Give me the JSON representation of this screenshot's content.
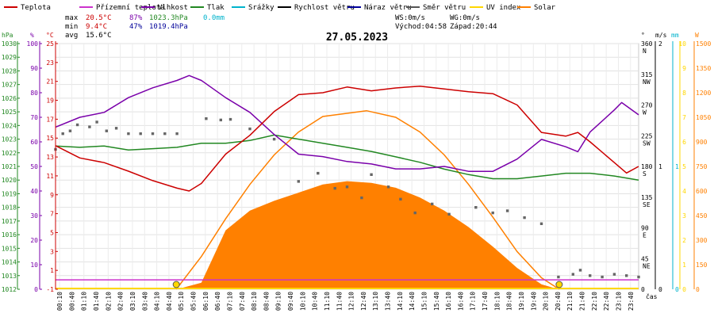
{
  "chart_data": {
    "type": "line",
    "title": "27.05.2023",
    "legend": [
      {
        "label": "Teplota",
        "color": "#cc0000"
      },
      {
        "label": "Přízemní teplota",
        "color": "#cc33cc"
      },
      {
        "label": "Vlhkost",
        "color": "#7a00aa"
      },
      {
        "label": "Tlak",
        "color": "#228822"
      },
      {
        "label": "Srážky",
        "color": "#00b3cc"
      },
      {
        "label": "Rychlost větru",
        "color": "#000000"
      },
      {
        "label": "Náraz větru",
        "color": "#000099"
      },
      {
        "label": "Směr větru",
        "color": "#555555"
      },
      {
        "label": "UV index",
        "color": "#ffd700"
      },
      {
        "label": "Solar",
        "color": "#ff8000"
      }
    ],
    "stats": {
      "max_label": "max",
      "max_temp": "20.5°C",
      "max_hum": "87%",
      "max_press": "1023.3hPa",
      "rain": "0.0mm",
      "min_label": "min",
      "min_temp": "9.4°C",
      "min_hum": "47%",
      "min_press": "1019.4hPa",
      "avg_label": "avg",
      "avg_temp": "15.6°C",
      "ws": "WS:0m/s",
      "wg": "WG:0m/s",
      "sunrise": "Východ:04:58",
      "sunset": "Západ:20:44"
    },
    "axes": {
      "hpa_unit": "hPa",
      "pct_unit": "%",
      "c_unit": "°C",
      "deg_unit": "°",
      "ms_unit": "m/s",
      "mm_unit": "mm",
      "w_unit": "W",
      "time_unit": "čas",
      "hpa_ticks": [
        "1030",
        "1029",
        "1028",
        "1027",
        "1026",
        "1025",
        "1024",
        "1023",
        "1022",
        "1021",
        "1020",
        "1019",
        "1018",
        "1017",
        "1016",
        "1015",
        "1014",
        "1013",
        "1012"
      ],
      "pct_ticks": [
        "100",
        "90",
        "80",
        "70",
        "60",
        "50",
        "40",
        "30",
        "20",
        "10",
        "0"
      ],
      "c_ticks": [
        "25",
        "23",
        "21",
        "19",
        "17",
        "15",
        "13",
        "11",
        "9",
        "7",
        "5",
        "3",
        "1",
        "-1"
      ],
      "dir_ticks": [
        {
          "deg": 360,
          "label": "360",
          "dir": "N"
        },
        {
          "deg": 315,
          "label": "315",
          "dir": "NW"
        },
        {
          "deg": 270,
          "label": "270",
          "dir": "W"
        },
        {
          "deg": 225,
          "label": "225",
          "dir": "SW"
        },
        {
          "deg": 180,
          "label": "180",
          "dir": "S"
        },
        {
          "deg": 135,
          "label": "135",
          "dir": "SE"
        },
        {
          "deg": 90,
          "label": "90",
          "dir": "E"
        },
        {
          "deg": 45,
          "label": "45",
          "dir": "NE"
        },
        {
          "deg": 0,
          "label": "0",
          "dir": ""
        }
      ],
      "ms_ticks": [
        {
          "v": 2,
          "label": "2"
        },
        {
          "v": 1,
          "label": "1"
        },
        {
          "v": 0,
          "label": "0"
        }
      ],
      "mm_ticks": [
        {
          "v": 1,
          "label": "1"
        },
        {
          "v": 0,
          "label": "0"
        }
      ],
      "uv_ticks": [
        "0",
        "1",
        "2",
        "3",
        "4",
        "5",
        "6",
        "7",
        "8",
        "9",
        "10"
      ],
      "w_ticks": [
        "0",
        "150",
        "300",
        "450",
        "600",
        "750",
        "900",
        "1050",
        "1200",
        "1350",
        "1500"
      ],
      "x_ticks": [
        "00:10",
        "00:40",
        "01:10",
        "01:40",
        "02:10",
        "02:40",
        "03:10",
        "03:40",
        "04:10",
        "04:40",
        "05:10",
        "05:40",
        "06:10",
        "06:40",
        "07:10",
        "07:40",
        "08:10",
        "08:40",
        "09:10",
        "09:40",
        "10:10",
        "10:40",
        "11:10",
        "11:40",
        "12:10",
        "12:40",
        "13:10",
        "13:40",
        "14:10",
        "14:40",
        "15:10",
        "15:40",
        "16:10",
        "16:40",
        "17:10",
        "17:40",
        "18:10",
        "18:40",
        "19:10",
        "19:40",
        "20:10",
        "20:40",
        "21:10",
        "21:40",
        "22:10",
        "22:40",
        "23:10",
        "23:40"
      ]
    },
    "series": {
      "temperature": [
        [
          0,
          14.2
        ],
        [
          1,
          12.9
        ],
        [
          2,
          12.4
        ],
        [
          3,
          11.5
        ],
        [
          4,
          10.5
        ],
        [
          5,
          9.7
        ],
        [
          5.5,
          9.4
        ],
        [
          6,
          10.2
        ],
        [
          7,
          13.3
        ],
        [
          8,
          15.3
        ],
        [
          9,
          17.8
        ],
        [
          10,
          19.6
        ],
        [
          11,
          19.8
        ],
        [
          12,
          20.4
        ],
        [
          13,
          20.0
        ],
        [
          14,
          20.3
        ],
        [
          15,
          20.5
        ],
        [
          16,
          20.2
        ],
        [
          17,
          19.9
        ],
        [
          18,
          19.7
        ],
        [
          19,
          18.5
        ],
        [
          20,
          15.6
        ],
        [
          21,
          15.2
        ],
        [
          21.5,
          15.6
        ],
        [
          22,
          14.6
        ],
        [
          23,
          12.4
        ],
        [
          23.5,
          11.3
        ],
        [
          24,
          12.0
        ]
      ],
      "humidity": [
        [
          0,
          66
        ],
        [
          1,
          70
        ],
        [
          2,
          72
        ],
        [
          3,
          78
        ],
        [
          4,
          82
        ],
        [
          5,
          85
        ],
        [
          5.5,
          87
        ],
        [
          6,
          85
        ],
        [
          7,
          78
        ],
        [
          8,
          72
        ],
        [
          9,
          63
        ],
        [
          10,
          55
        ],
        [
          11,
          54
        ],
        [
          12,
          52
        ],
        [
          13,
          51
        ],
        [
          14,
          49
        ],
        [
          15,
          49
        ],
        [
          16,
          50
        ],
        [
          17,
          48
        ],
        [
          18,
          48
        ],
        [
          19,
          53
        ],
        [
          20,
          61
        ],
        [
          21,
          58
        ],
        [
          21.5,
          56
        ],
        [
          22,
          64
        ],
        [
          23,
          73
        ],
        [
          23.3,
          76
        ],
        [
          24,
          71
        ]
      ],
      "pressure": [
        [
          0,
          1022.5
        ],
        [
          1,
          1022.4
        ],
        [
          2,
          1022.5
        ],
        [
          3,
          1022.2
        ],
        [
          4,
          1022.3
        ],
        [
          5,
          1022.4
        ],
        [
          6,
          1022.7
        ],
        [
          7,
          1022.7
        ],
        [
          8,
          1022.9
        ],
        [
          9,
          1023.3
        ],
        [
          10,
          1023.0
        ],
        [
          11,
          1022.7
        ],
        [
          12,
          1022.4
        ],
        [
          13,
          1022.1
        ],
        [
          14,
          1021.7
        ],
        [
          15,
          1021.3
        ],
        [
          16,
          1020.8
        ],
        [
          17,
          1020.4
        ],
        [
          18,
          1020.1
        ],
        [
          19,
          1020.1
        ],
        [
          20,
          1020.3
        ],
        [
          21,
          1020.5
        ],
        [
          22,
          1020.5
        ],
        [
          23,
          1020.3
        ],
        [
          24,
          1020.0
        ]
      ],
      "ground_temp": [
        [
          0,
          0
        ],
        [
          24,
          0
        ]
      ],
      "uv_index": [
        [
          0,
          0
        ],
        [
          24,
          0
        ]
      ],
      "solar": [
        [
          5,
          0
        ],
        [
          6,
          40
        ],
        [
          7,
          360
        ],
        [
          8,
          480
        ],
        [
          9,
          540
        ],
        [
          10,
          590
        ],
        [
          11,
          640
        ],
        [
          12,
          660
        ],
        [
          13,
          650
        ],
        [
          14,
          620
        ],
        [
          15,
          560
        ],
        [
          16,
          480
        ],
        [
          17,
          380
        ],
        [
          18,
          260
        ],
        [
          19,
          130
        ],
        [
          20,
          30
        ],
        [
          20.7,
          0
        ]
      ],
      "solar_theoretical": [
        [
          4.97,
          0
        ],
        [
          6,
          200
        ],
        [
          7,
          430
        ],
        [
          8,
          640
        ],
        [
          9,
          820
        ],
        [
          10,
          960
        ],
        [
          11,
          1055
        ],
        [
          12.8,
          1090
        ],
        [
          14,
          1050
        ],
        [
          15,
          960
        ],
        [
          16,
          820
        ],
        [
          17,
          640
        ],
        [
          18,
          440
        ],
        [
          19,
          230
        ],
        [
          20,
          70
        ],
        [
          20.73,
          0
        ]
      ],
      "wind_direction": [
        [
          0,
          205
        ],
        [
          0.3,
          228
        ],
        [
          0.6,
          232
        ],
        [
          0.9,
          241
        ],
        [
          1.4,
          238
        ],
        [
          1.7,
          245
        ],
        [
          2.1,
          232
        ],
        [
          2.5,
          236
        ],
        [
          3,
          228
        ],
        [
          3.5,
          228
        ],
        [
          4,
          228
        ],
        [
          4.5,
          228
        ],
        [
          5,
          228
        ],
        [
          6.2,
          250
        ],
        [
          6.8,
          248
        ],
        [
          7.2,
          249
        ],
        [
          8,
          235
        ],
        [
          9,
          220
        ],
        [
          10,
          158
        ],
        [
          10.8,
          170
        ],
        [
          11.5,
          148
        ],
        [
          12,
          150
        ],
        [
          12.6,
          134
        ],
        [
          13,
          168
        ],
        [
          13.7,
          150
        ],
        [
          14.2,
          132
        ],
        [
          14.8,
          112
        ],
        [
          15.5,
          125
        ],
        [
          16.2,
          110
        ],
        [
          17.3,
          120
        ],
        [
          18,
          112
        ],
        [
          18.6,
          115
        ],
        [
          19.3,
          105
        ],
        [
          20,
          96
        ],
        [
          20.7,
          18
        ],
        [
          21.3,
          22
        ],
        [
          21.6,
          28
        ],
        [
          22,
          20
        ],
        [
          22.5,
          18
        ],
        [
          23,
          22
        ],
        [
          23.5,
          20
        ],
        [
          24,
          18
        ]
      ],
      "sun_markers": [
        {
          "h": 4.97,
          "label": "sunrise"
        },
        {
          "h": 20.73,
          "label": "sunset"
        }
      ]
    },
    "ranges": {
      "temp": [
        -1,
        25
      ],
      "humidity": [
        0,
        100
      ],
      "pressure": [
        1012,
        1030
      ],
      "direction": [
        0,
        360
      ],
      "solar": [
        0,
        1500
      ],
      "uv": [
        0,
        10
      ],
      "time_h": [
        0,
        24
      ]
    }
  }
}
